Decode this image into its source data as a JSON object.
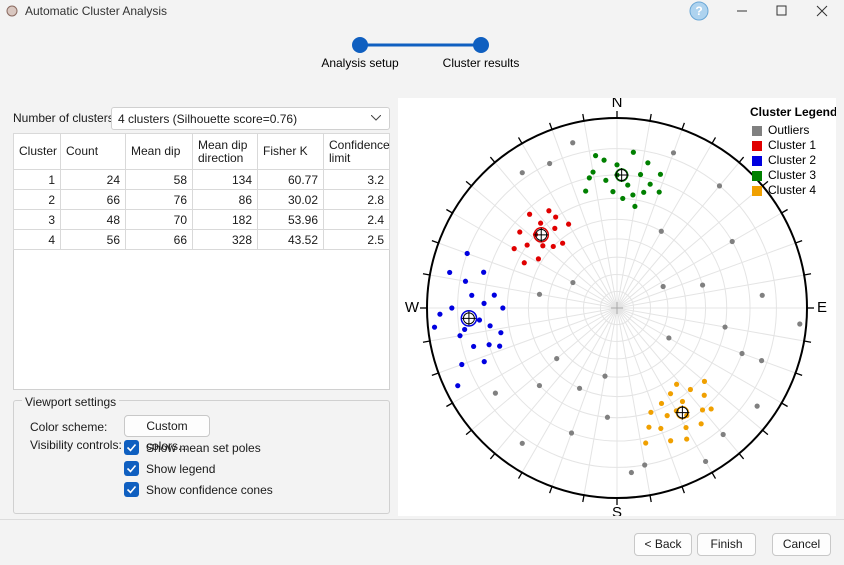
{
  "window": {
    "title": "Automatic Cluster Analysis",
    "help": "?"
  },
  "stepper": {
    "steps": [
      "Analysis setup",
      "Cluster results"
    ]
  },
  "clusters_field": {
    "label": "Number of clusters:",
    "value": "4 clusters (Silhouette score=0.76)"
  },
  "table": {
    "headers": [
      "Cluster",
      "Count",
      "Mean dip",
      "Mean dip direction",
      "Fisher K",
      "Confidence limit"
    ],
    "rows": [
      [
        1,
        24,
        58,
        134,
        60.77,
        3.2
      ],
      [
        2,
        66,
        76,
        86,
        30.02,
        2.8
      ],
      [
        3,
        48,
        70,
        182,
        53.96,
        2.4
      ],
      [
        4,
        56,
        66,
        328,
        43.52,
        2.5
      ]
    ]
  },
  "viewport": {
    "title": "Viewport settings",
    "color_label": "Color scheme:",
    "color_button": "Custom colors...",
    "visibility_label": "Visibility controls:",
    "checkboxes": [
      "Show mean set poles",
      "Show legend",
      "Show confidence cones"
    ]
  },
  "buttons": [
    "< Back",
    "Finish",
    "Cancel"
  ],
  "stereonet": {
    "legend_title": "Cluster Legend",
    "directions": [
      "N",
      "E",
      "S",
      "W"
    ],
    "series": [
      {
        "name": "Outliers",
        "color": "#808080",
        "points": [
          [
            20,
            8
          ],
          [
            40,
            10
          ],
          [
            60,
            20
          ],
          [
            75,
            40
          ],
          [
            100,
            30
          ],
          [
            110,
            12
          ],
          [
            125,
            6
          ],
          [
            150,
            4
          ],
          [
            170,
            10
          ],
          [
            185,
            30
          ],
          [
            200,
            20
          ],
          [
            215,
            8
          ],
          [
            225,
            30
          ],
          [
            235,
            14
          ],
          [
            190,
            50
          ],
          [
            120,
            55
          ],
          [
            65,
            60
          ],
          [
            335,
            10
          ],
          [
            325,
            8
          ],
          [
            345,
            6
          ],
          [
            300,
            60
          ],
          [
            280,
            45
          ],
          [
            205,
            40
          ],
          [
            95,
            2
          ],
          [
            85,
            15
          ],
          [
            30,
            40
          ],
          [
            175,
            8
          ],
          [
            140,
            8
          ],
          [
            230,
            45
          ],
          [
            110,
            20
          ]
        ]
      },
      {
        "name": "Cluster 1",
        "color": "#e00000",
        "points": [
          [
            305,
            30
          ],
          [
            310,
            36
          ],
          [
            318,
            28
          ],
          [
            322,
            34
          ],
          [
            300,
            26
          ],
          [
            314,
            40
          ],
          [
            326,
            30
          ],
          [
            308,
            24
          ],
          [
            320,
            42
          ],
          [
            296,
            33
          ],
          [
            330,
            36
          ],
          [
            312,
            30
          ],
          [
            317,
            22
          ],
          [
            302,
            38
          ],
          [
            325,
            26
          ]
        ]
      },
      {
        "name": "Cluster 2",
        "color": "#0000e0",
        "points": [
          [
            260,
            10
          ],
          [
            265,
            18
          ],
          [
            270,
            8
          ],
          [
            275,
            15
          ],
          [
            255,
            14
          ],
          [
            262,
            22
          ],
          [
            268,
            4
          ],
          [
            280,
            12
          ],
          [
            250,
            8
          ],
          [
            258,
            26
          ],
          [
            272,
            20
          ],
          [
            285,
            18
          ],
          [
            248,
            16
          ],
          [
            264,
            2
          ],
          [
            276,
            24
          ],
          [
            254,
            20
          ],
          [
            290,
            10
          ],
          [
            244,
            4
          ],
          [
            262,
            12
          ],
          [
            270,
            28
          ],
          [
            282,
            6
          ],
          [
            252,
            24
          ]
        ]
      },
      {
        "name": "Cluster 3",
        "color": "#008000",
        "points": [
          [
            350,
            18
          ],
          [
            355,
            22
          ],
          [
            0,
            16
          ],
          [
            5,
            24
          ],
          [
            10,
            19
          ],
          [
            358,
            27
          ],
          [
            12,
            14
          ],
          [
            15,
            22
          ],
          [
            352,
            12
          ],
          [
            3,
            30
          ],
          [
            8,
            28
          ],
          [
            18,
            17
          ],
          [
            345,
            25
          ],
          [
            6,
            11
          ],
          [
            13,
            26
          ],
          [
            0,
            20
          ],
          [
            20,
            24
          ],
          [
            355,
            14
          ],
          [
            348,
            20
          ],
          [
            10,
            33
          ]
        ]
      },
      {
        "name": "Cluster 4",
        "color": "#f0a000",
        "points": [
          [
            140,
            20
          ],
          [
            145,
            28
          ],
          [
            150,
            18
          ],
          [
            155,
            26
          ],
          [
            160,
            22
          ],
          [
            138,
            30
          ],
          [
            148,
            34
          ],
          [
            152,
            14
          ],
          [
            135,
            24
          ],
          [
            162,
            30
          ],
          [
            144,
            16
          ],
          [
            158,
            16
          ],
          [
            130,
            28
          ],
          [
            150,
            26
          ],
          [
            165,
            24
          ],
          [
            142,
            36
          ],
          [
            155,
            32
          ],
          [
            147,
            22
          ],
          [
            168,
            18
          ],
          [
            137,
            18
          ]
        ]
      }
    ]
  }
}
